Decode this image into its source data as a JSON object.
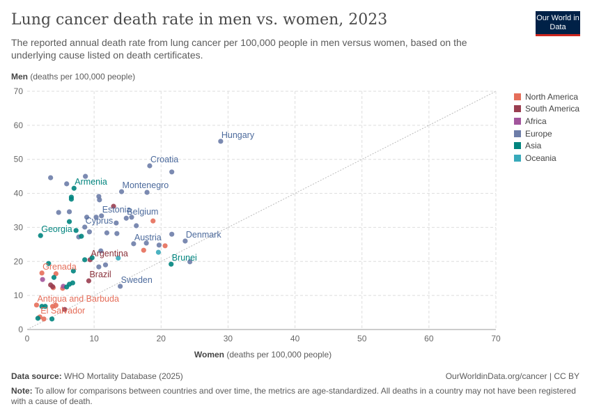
{
  "header": {
    "title": "Lung cancer death rate in men vs. women, 2023",
    "subtitle": "The reported annual death rate from lung cancer per 100,000 people in men versus women, based on the underlying cause listed on death certificates.",
    "logo_text": "Our World in Data"
  },
  "chart_data": {
    "type": "scatter",
    "title": "Lung cancer death rate in men vs. women, 2023",
    "xlabel_bold": "Women",
    "xlabel_rest": " (deaths per 100,000 people)",
    "ylabel_bold": "Men",
    "ylabel_rest": " (deaths per 100,000 people)",
    "xlim": [
      0,
      70
    ],
    "ylim": [
      0,
      70
    ],
    "xticks": [
      0,
      10,
      20,
      30,
      40,
      50,
      60,
      70
    ],
    "yticks": [
      0,
      10,
      20,
      30,
      40,
      50,
      60,
      70
    ],
    "grid": true,
    "reference_line": "y = x (dotted)",
    "legend_position": "right",
    "series": [
      {
        "name": "North America",
        "color": "#E56E5A",
        "points": [
          {
            "x": 18.8,
            "y": 31.9
          },
          {
            "x": 20.6,
            "y": 24.6
          },
          {
            "x": 17.4,
            "y": 23.3
          },
          {
            "x": 2.2,
            "y": 16.6,
            "label": "Grenada"
          },
          {
            "x": 4.3,
            "y": 16.4
          },
          {
            "x": 3.9,
            "y": 12.3
          },
          {
            "x": 5.3,
            "y": 12.1
          },
          {
            "x": 1.4,
            "y": 7.2,
            "label": "Antigua and Barbuda"
          },
          {
            "x": 3.8,
            "y": 6.8
          },
          {
            "x": 4.3,
            "y": 7.1
          },
          {
            "x": 1.9,
            "y": 3.7,
            "label": "El Salvador"
          },
          {
            "x": 2.5,
            "y": 3.1
          }
        ]
      },
      {
        "name": "South America",
        "color": "#9A3E50",
        "points": [
          {
            "x": 12.9,
            "y": 36.2
          },
          {
            "x": 9.4,
            "y": 20.5,
            "label": "Argentina"
          },
          {
            "x": 9.2,
            "y": 14.3,
            "label": "Brazil"
          },
          {
            "x": 3.5,
            "y": 13.1
          },
          {
            "x": 5.6,
            "y": 5.9
          },
          {
            "x": 3.8,
            "y": 12.6
          }
        ]
      },
      {
        "name": "Africa",
        "color": "#A2559C",
        "points": [
          {
            "x": 2.3,
            "y": 14.7
          },
          {
            "x": 5.4,
            "y": 12.7
          }
        ]
      },
      {
        "name": "Europe",
        "color": "#6D7DA8",
        "points": [
          {
            "x": 28.9,
            "y": 55.3,
            "label": "Hungary"
          },
          {
            "x": 18.3,
            "y": 48.1,
            "label": "Croatia"
          },
          {
            "x": 21.6,
            "y": 46.3
          },
          {
            "x": 3.5,
            "y": 44.6
          },
          {
            "x": 8.7,
            "y": 45.0
          },
          {
            "x": 5.9,
            "y": 42.8
          },
          {
            "x": 14.1,
            "y": 40.5,
            "label": "Montenegro"
          },
          {
            "x": 17.9,
            "y": 40.3
          },
          {
            "x": 10.7,
            "y": 39.1
          },
          {
            "x": 10.8,
            "y": 38.1
          },
          {
            "x": 4.7,
            "y": 34.4
          },
          {
            "x": 6.3,
            "y": 34.6
          },
          {
            "x": 8.9,
            "y": 33.0
          },
          {
            "x": 10.3,
            "y": 33.0
          },
          {
            "x": 11.1,
            "y": 33.4,
            "label": "Estonia"
          },
          {
            "x": 14.8,
            "y": 32.7,
            "label": "Belgium"
          },
          {
            "x": 15.6,
            "y": 33.0
          },
          {
            "x": 13.3,
            "y": 31.3
          },
          {
            "x": 16.3,
            "y": 30.5
          },
          {
            "x": 8.6,
            "y": 30.1,
            "label": "Cyprus"
          },
          {
            "x": 9.3,
            "y": 28.7
          },
          {
            "x": 13.4,
            "y": 28.2
          },
          {
            "x": 11.9,
            "y": 28.4
          },
          {
            "x": 7.7,
            "y": 27.2
          },
          {
            "x": 15.9,
            "y": 25.2,
            "label": "Austria"
          },
          {
            "x": 17.8,
            "y": 25.4
          },
          {
            "x": 19.7,
            "y": 24.8
          },
          {
            "x": 21.6,
            "y": 28.0
          },
          {
            "x": 23.6,
            "y": 26.0,
            "label": "Denmark"
          },
          {
            "x": 24.3,
            "y": 19.9
          },
          {
            "x": 11.0,
            "y": 23.1
          },
          {
            "x": 10.7,
            "y": 18.4
          },
          {
            "x": 11.7,
            "y": 19.0
          },
          {
            "x": 13.9,
            "y": 12.7,
            "label": "Sweden"
          }
        ]
      },
      {
        "name": "Asia",
        "color": "#00847E",
        "points": [
          {
            "x": 7.0,
            "y": 41.5,
            "label": "Armenia"
          },
          {
            "x": 6.6,
            "y": 38.9
          },
          {
            "x": 6.6,
            "y": 38.3
          },
          {
            "x": 6.3,
            "y": 31.7
          },
          {
            "x": 2.0,
            "y": 27.6,
            "label": "Georgia"
          },
          {
            "x": 7.3,
            "y": 29.1
          },
          {
            "x": 8.1,
            "y": 27.4
          },
          {
            "x": 8.6,
            "y": 20.5
          },
          {
            "x": 9.7,
            "y": 21.1
          },
          {
            "x": 3.2,
            "y": 19.4
          },
          {
            "x": 4.0,
            "y": 15.3
          },
          {
            "x": 6.9,
            "y": 17.2
          },
          {
            "x": 5.9,
            "y": 12.5
          },
          {
            "x": 6.3,
            "y": 13.3
          },
          {
            "x": 6.8,
            "y": 13.7
          },
          {
            "x": 2.2,
            "y": 6.8
          },
          {
            "x": 2.7,
            "y": 6.8
          },
          {
            "x": 1.6,
            "y": 3.3
          },
          {
            "x": 3.7,
            "y": 3.1
          },
          {
            "x": 21.5,
            "y": 19.2,
            "label": "Brunei"
          }
        ]
      },
      {
        "name": "Oceania",
        "color": "#38AABA",
        "points": [
          {
            "x": 19.6,
            "y": 22.7
          },
          {
            "x": 13.6,
            "y": 21.0
          }
        ]
      }
    ]
  },
  "footer": {
    "source_label": "Data source:",
    "source": " WHO Mortality Database (2025)",
    "right": "OurWorldinData.org/cancer | CC BY",
    "note_label": "Note:",
    "note": " To allow for comparisons between countries and over time, the metrics are age-standardized. All deaths in a country may not have been registered with a cause of death."
  }
}
